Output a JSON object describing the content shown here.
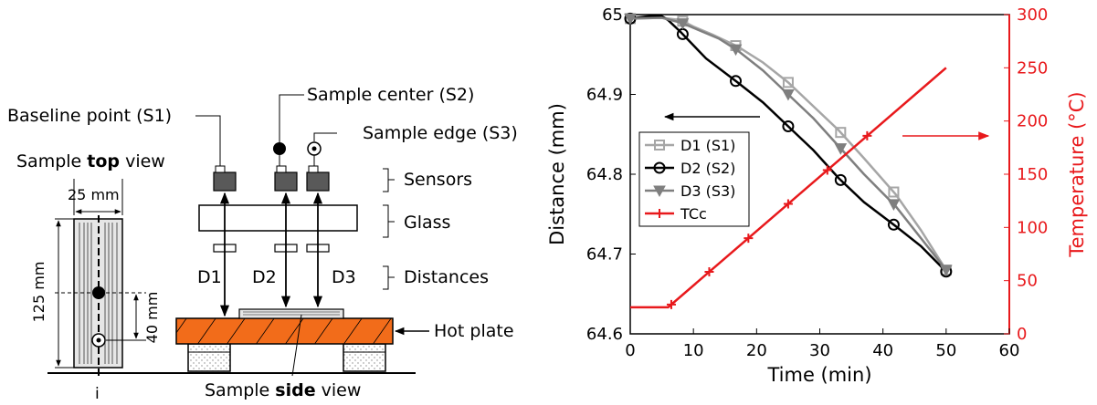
{
  "diagram": {
    "top_view_title_pre": "Sample ",
    "top_view_title_bold": "top",
    "top_view_title_post": " view",
    "width_dim": "25 mm",
    "length_dim": "125 mm",
    "offset_dim": "40 mm",
    "baseline_label": "Baseline point (S1)",
    "center_label": "Sample center (S2)",
    "edge_label": "Sample edge (S3)",
    "sensors_label": "Sensors",
    "glass_label": "Glass",
    "distances_label": "Distances",
    "hot_plate_label": "Hot plate",
    "side_view_pre": "Sample ",
    "side_view_bold": "side",
    "side_view_post": " view",
    "d1": "D1",
    "d2": "D2",
    "d3": "D3",
    "axis_mark": "i"
  },
  "colors": {
    "hot_plate": "#f26c1a",
    "sensor": "#595959",
    "d1": "#a6a6a6",
    "d2": "#000000",
    "d3": "#7f7f7f",
    "tcc": "#e8191c"
  },
  "chart_data": {
    "type": "line",
    "xlabel": "Time (min)",
    "ylabel": "Distance (mm)",
    "y2label": "Temperature (°C)",
    "xlim": [
      0,
      60
    ],
    "ylim": [
      64.6,
      65
    ],
    "y2lim": [
      0,
      300
    ],
    "xticks": [
      0,
      10,
      20,
      30,
      40,
      50,
      60
    ],
    "yticks": [
      64.6,
      64.7,
      64.8,
      64.9,
      65
    ],
    "y2ticks": [
      0,
      50,
      100,
      150,
      200,
      250,
      300
    ],
    "legend_position": "left",
    "series": [
      {
        "name": "D1 (S1)",
        "axis": "left",
        "marker": "square",
        "x": [
          0,
          5,
          8,
          10,
          13,
          17,
          21,
          25,
          29,
          33,
          37,
          42,
          46,
          50
        ],
        "y": [
          64.995,
          64.996,
          64.993,
          64.985,
          64.975,
          64.96,
          64.94,
          64.915,
          64.885,
          64.855,
          64.82,
          64.775,
          64.73,
          64.68
        ],
        "marker_x": [
          0,
          8.3,
          16.7,
          25,
          33.3,
          41.7,
          50
        ]
      },
      {
        "name": "D2 (S2)",
        "axis": "left",
        "marker": "circle",
        "x": [
          0,
          3,
          5,
          6,
          8,
          12,
          17,
          21,
          25,
          29,
          33,
          37,
          42,
          46,
          50
        ],
        "y": [
          64.995,
          64.998,
          64.998,
          64.993,
          64.978,
          64.945,
          64.915,
          64.89,
          64.86,
          64.83,
          64.795,
          64.765,
          64.735,
          64.71,
          64.678
        ],
        "marker_x": [
          0,
          8.3,
          16.7,
          25,
          33.3,
          41.7,
          50
        ]
      },
      {
        "name": "D3 (S3)",
        "axis": "left",
        "marker": "triangle",
        "x": [
          0,
          5,
          8,
          11,
          14,
          17,
          21,
          25,
          29,
          33,
          37,
          42,
          46,
          50
        ],
        "y": [
          64.995,
          64.996,
          64.99,
          64.98,
          64.97,
          64.955,
          64.93,
          64.9,
          64.87,
          64.835,
          64.8,
          64.76,
          64.72,
          64.68
        ],
        "marker_x": [
          0,
          8.3,
          16.7,
          25,
          33.3,
          41.7,
          50
        ]
      },
      {
        "name": "TCc",
        "axis": "right",
        "marker": "plus",
        "x": [
          0,
          6,
          50
        ],
        "y": [
          25,
          25,
          250
        ],
        "marker_x": [
          6.5,
          12.5,
          18.7,
          25,
          31.2,
          37.5
        ]
      }
    ]
  }
}
